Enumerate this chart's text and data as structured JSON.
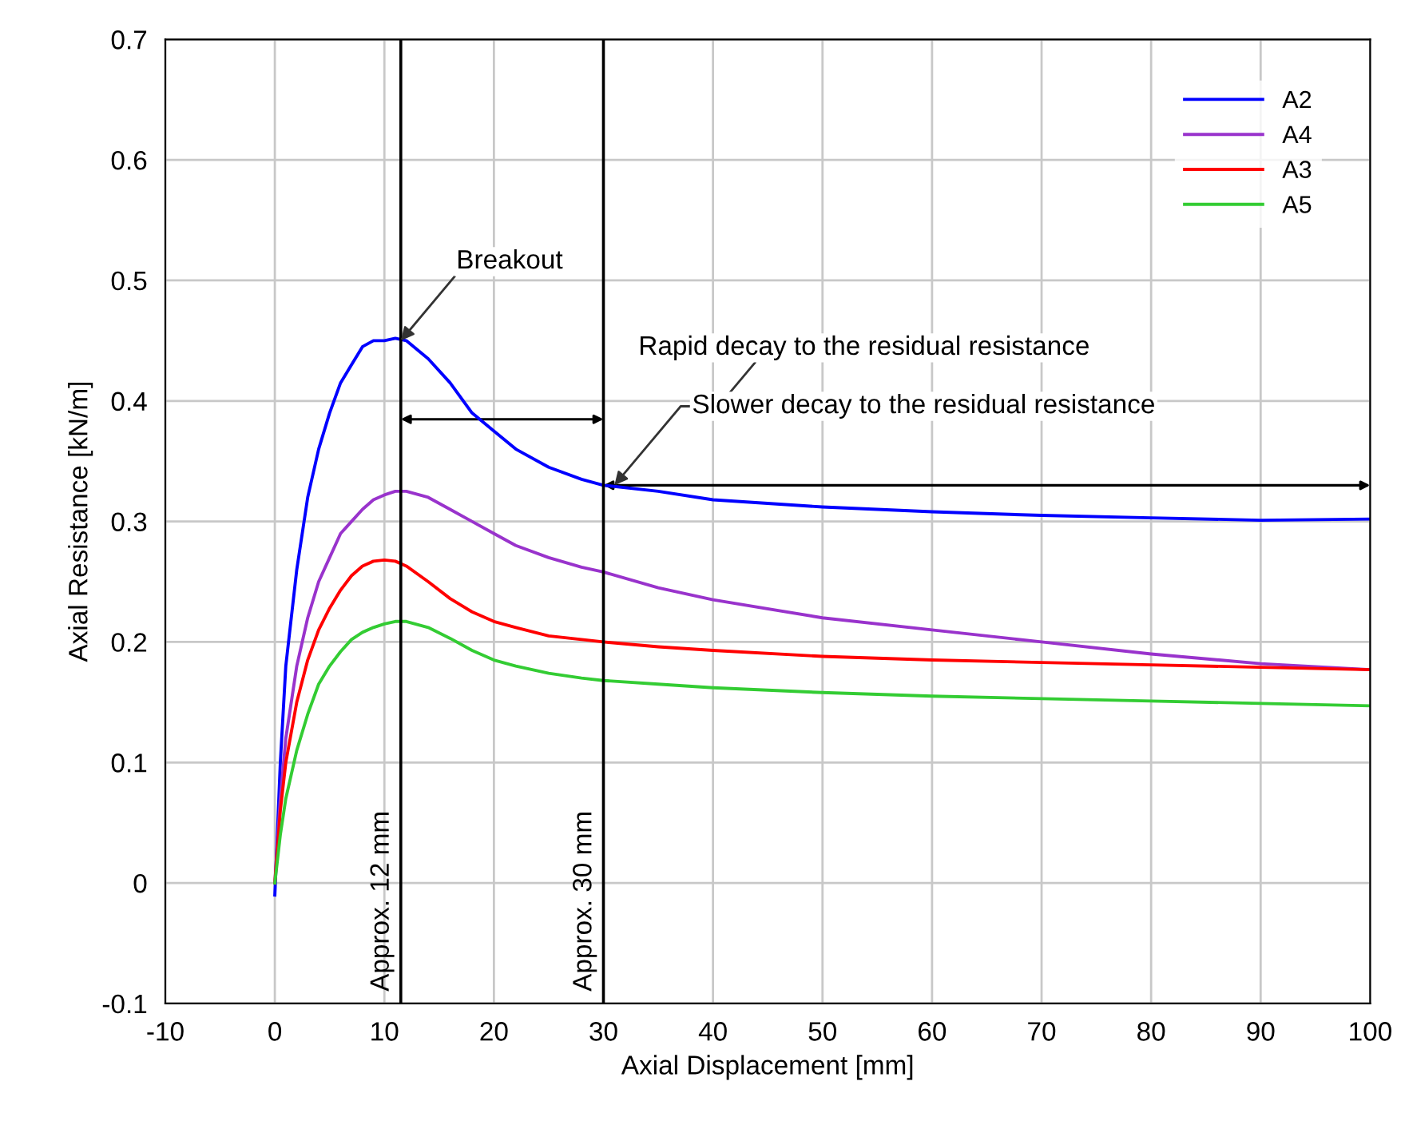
{
  "chart_data": {
    "type": "line",
    "xlabel": "Axial Displacement [mm]",
    "ylabel": "Axial Resistance [kN/m]",
    "x": [
      0,
      0.5,
      1,
      2,
      3,
      4,
      5,
      6,
      7,
      8,
      9,
      10,
      11,
      12,
      14,
      16,
      18,
      20,
      22,
      25,
      28,
      30,
      35,
      40,
      50,
      60,
      70,
      80,
      90,
      100
    ],
    "series": [
      {
        "name": "A2",
        "color": "#0000ff",
        "values": [
          -0.01,
          0.1,
          0.18,
          0.26,
          0.32,
          0.36,
          0.39,
          0.415,
          0.43,
          0.445,
          0.45,
          0.45,
          0.452,
          0.45,
          0.435,
          0.415,
          0.39,
          0.375,
          0.36,
          0.345,
          0.335,
          0.33,
          0.325,
          0.318,
          0.312,
          0.308,
          0.305,
          0.303,
          0.301,
          0.302
        ]
      },
      {
        "name": "A4",
        "color": "#9933cc",
        "values": [
          0,
          0.07,
          0.12,
          0.18,
          0.22,
          0.25,
          0.27,
          0.29,
          0.3,
          0.31,
          0.318,
          0.322,
          0.325,
          0.325,
          0.32,
          0.31,
          0.3,
          0.29,
          0.28,
          0.27,
          0.262,
          0.258,
          0.245,
          0.235,
          0.22,
          0.21,
          0.2,
          0.19,
          0.182,
          0.177
        ]
      },
      {
        "name": "A3",
        "color": "#ff0000",
        "values": [
          0,
          0.06,
          0.1,
          0.15,
          0.185,
          0.21,
          0.228,
          0.243,
          0.255,
          0.263,
          0.267,
          0.268,
          0.267,
          0.263,
          0.25,
          0.236,
          0.225,
          0.217,
          0.212,
          0.205,
          0.202,
          0.2,
          0.196,
          0.193,
          0.188,
          0.185,
          0.183,
          0.181,
          0.179,
          0.177
        ]
      },
      {
        "name": "A5",
        "color": "#33cc33",
        "values": [
          0,
          0.04,
          0.07,
          0.11,
          0.14,
          0.165,
          0.18,
          0.192,
          0.202,
          0.208,
          0.212,
          0.215,
          0.217,
          0.217,
          0.212,
          0.203,
          0.193,
          0.185,
          0.18,
          0.174,
          0.17,
          0.168,
          0.165,
          0.162,
          0.158,
          0.155,
          0.153,
          0.151,
          0.149,
          0.147
        ]
      }
    ],
    "xlim": [
      -10,
      100
    ],
    "xticks": [
      -10,
      0,
      10,
      20,
      30,
      40,
      50,
      60,
      70,
      80,
      90,
      100
    ],
    "ylim": [
      -0.1,
      0.7
    ],
    "yticks": [
      -0.1,
      0,
      0.1,
      0.2,
      0.3,
      0.4,
      0.5,
      0.6,
      0.7
    ],
    "ref_lines": [
      {
        "axis": "x",
        "value": 11.5,
        "label": "Approx. 12 mm",
        "color": "#000000"
      },
      {
        "axis": "x",
        "value": 30,
        "label": "Approx. 30 mm",
        "color": "#000000"
      }
    ],
    "annotations": [
      {
        "text": "Breakout",
        "x": 11.5,
        "y": 0.45
      },
      "Rapid decay to the residual resistance",
      {
        "text": "Slower decay to the residual resistance",
        "x": 31,
        "y": 0.33
      }
    ],
    "grid": true,
    "legend": "top right",
    "line_style": "solid",
    "marker": "none"
  }
}
